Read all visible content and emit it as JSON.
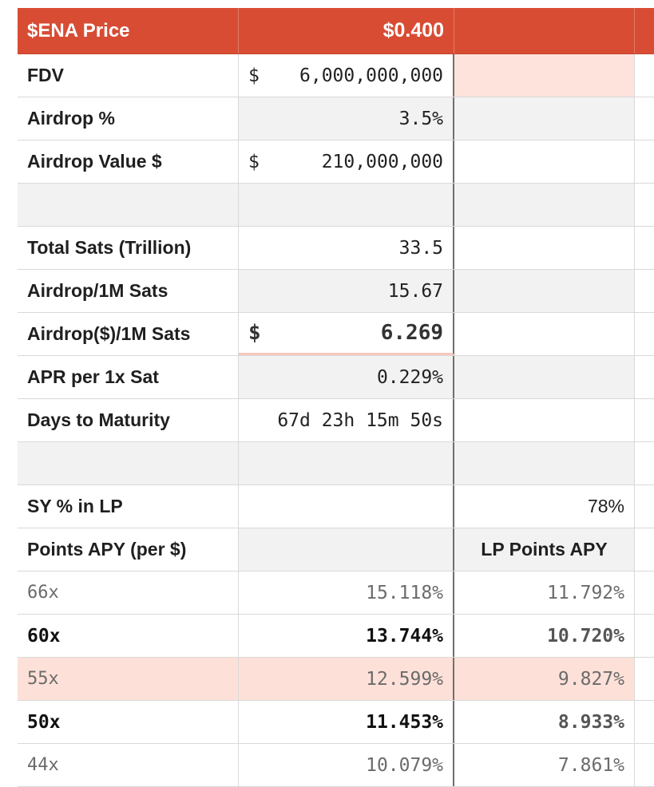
{
  "header": {
    "label": "$ENA Price",
    "value": "$0.400",
    "col3": ""
  },
  "rows": [
    {
      "label": "FDV",
      "symbol": "$",
      "value": "6,000,000,000",
      "col3": ""
    },
    {
      "label": "Airdrop %",
      "value": "3.5%",
      "col3": ""
    },
    {
      "label": "Airdrop Value $",
      "symbol": "$",
      "value": "210,000,000",
      "col3": ""
    },
    {
      "label": "",
      "value": "",
      "col3": ""
    },
    {
      "label": "Total Sats (Trillion)",
      "value": "33.5",
      "col3": ""
    },
    {
      "label": "Airdrop/1M Sats",
      "value": "15.67",
      "col3": ""
    },
    {
      "label": "Airdrop($)/1M Sats",
      "symbol": "$",
      "value": "6.269",
      "col3": ""
    },
    {
      "label": "APR per 1x Sat",
      "value": "0.229%",
      "col3": ""
    },
    {
      "label": "Days to Maturity",
      "value": "67d 23h 15m 50s",
      "col3": ""
    },
    {
      "label": "",
      "value": "",
      "col3": ""
    },
    {
      "label": "SY % in LP",
      "value": "",
      "col3": "78%"
    },
    {
      "label": "Points APY (per $)",
      "value": "",
      "col3": "LP Points APY"
    },
    {
      "label": "66x",
      "value": "15.118%",
      "col3": "11.792%"
    },
    {
      "label": "60x",
      "value": "13.744%",
      "col3": "10.720%"
    },
    {
      "label": "55x",
      "value": "12.599%",
      "col3": "9.827%"
    },
    {
      "label": "50x",
      "value": "11.453%",
      "col3": "8.933%"
    },
    {
      "label": "44x",
      "value": "10.079%",
      "col3": "7.861%"
    }
  ],
  "colors": {
    "header_bg": "#d84c34",
    "highlight": "#fde1d8",
    "shade": "#f2f2f2"
  }
}
